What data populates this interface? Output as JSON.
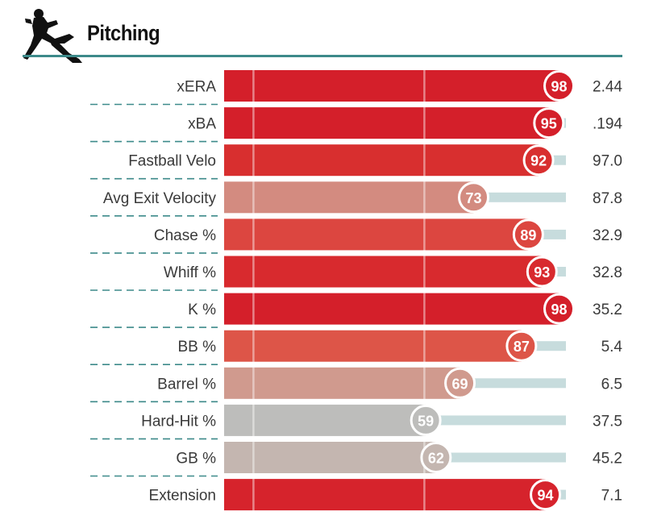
{
  "header": {
    "title": "Pitching",
    "icon": "pitcher-silhouette-icon"
  },
  "chart_data": {
    "type": "bar",
    "orientation": "horizontal",
    "title": "Pitching",
    "xlim": [
      0,
      100
    ],
    "grid": "vertical lines at 10 and 60",
    "categories": [
      "xERA",
      "xBA",
      "Fastball Velo",
      "Avg Exit Velocity",
      "Chase %",
      "Whiff %",
      "K %",
      "BB %",
      "Barrel %",
      "Hard-Hit %",
      "GB %",
      "Extension"
    ],
    "percentiles": [
      98,
      95,
      92,
      73,
      89,
      93,
      98,
      87,
      69,
      59,
      62,
      94
    ],
    "stat_values": [
      "2.44",
      ".194",
      "97.0",
      "87.8",
      "32.9",
      "32.8",
      "35.2",
      "5.4",
      "6.5",
      "37.5",
      "45.2",
      "7.1"
    ],
    "colors": [
      "#d41f2a",
      "#d41f2a",
      "#d82f2f",
      "#d38b80",
      "#dc4640",
      "#d82a2e",
      "#d41f2a",
      "#dd5548",
      "#d09a8e",
      "#bdbdbb",
      "#c4b6b0",
      "#d6232c"
    ],
    "track_color": "#c7dcdd",
    "divider_color": "#3d8a8a"
  }
}
